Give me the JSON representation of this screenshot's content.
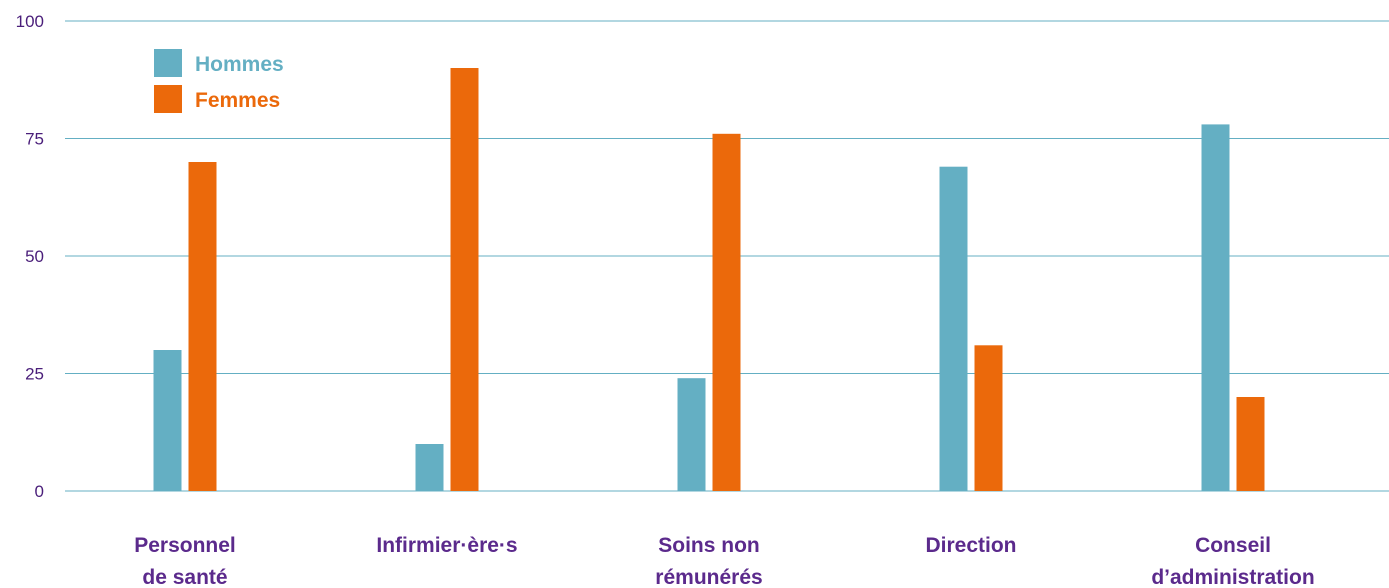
{
  "chart_data": {
    "type": "bar",
    "categories": [
      [
        "Personnel",
        "de santé"
      ],
      [
        "Infirmier·ère·s"
      ],
      [
        "Soins non",
        "rémunérés"
      ],
      [
        "Direction"
      ],
      [
        "Conseil",
        "d’administration"
      ]
    ],
    "series": [
      {
        "name": "Hommes",
        "values": [
          30,
          10,
          24,
          69,
          78
        ],
        "color": "#64afc3"
      },
      {
        "name": "Femmes",
        "values": [
          70,
          90,
          76,
          31,
          20
        ],
        "color": "#eb690b"
      }
    ],
    "ylim": [
      0,
      100
    ],
    "yticks": [
      "0",
      "25",
      "50",
      "75",
      "100"
    ],
    "ytick_values": [
      0,
      25,
      50,
      75,
      100
    ],
    "grid": true,
    "legend_position": "top-left",
    "colors": {
      "grid": "#64afc3",
      "tick_text": "#4a1e7a",
      "category_text": "#5b2a8c"
    }
  }
}
